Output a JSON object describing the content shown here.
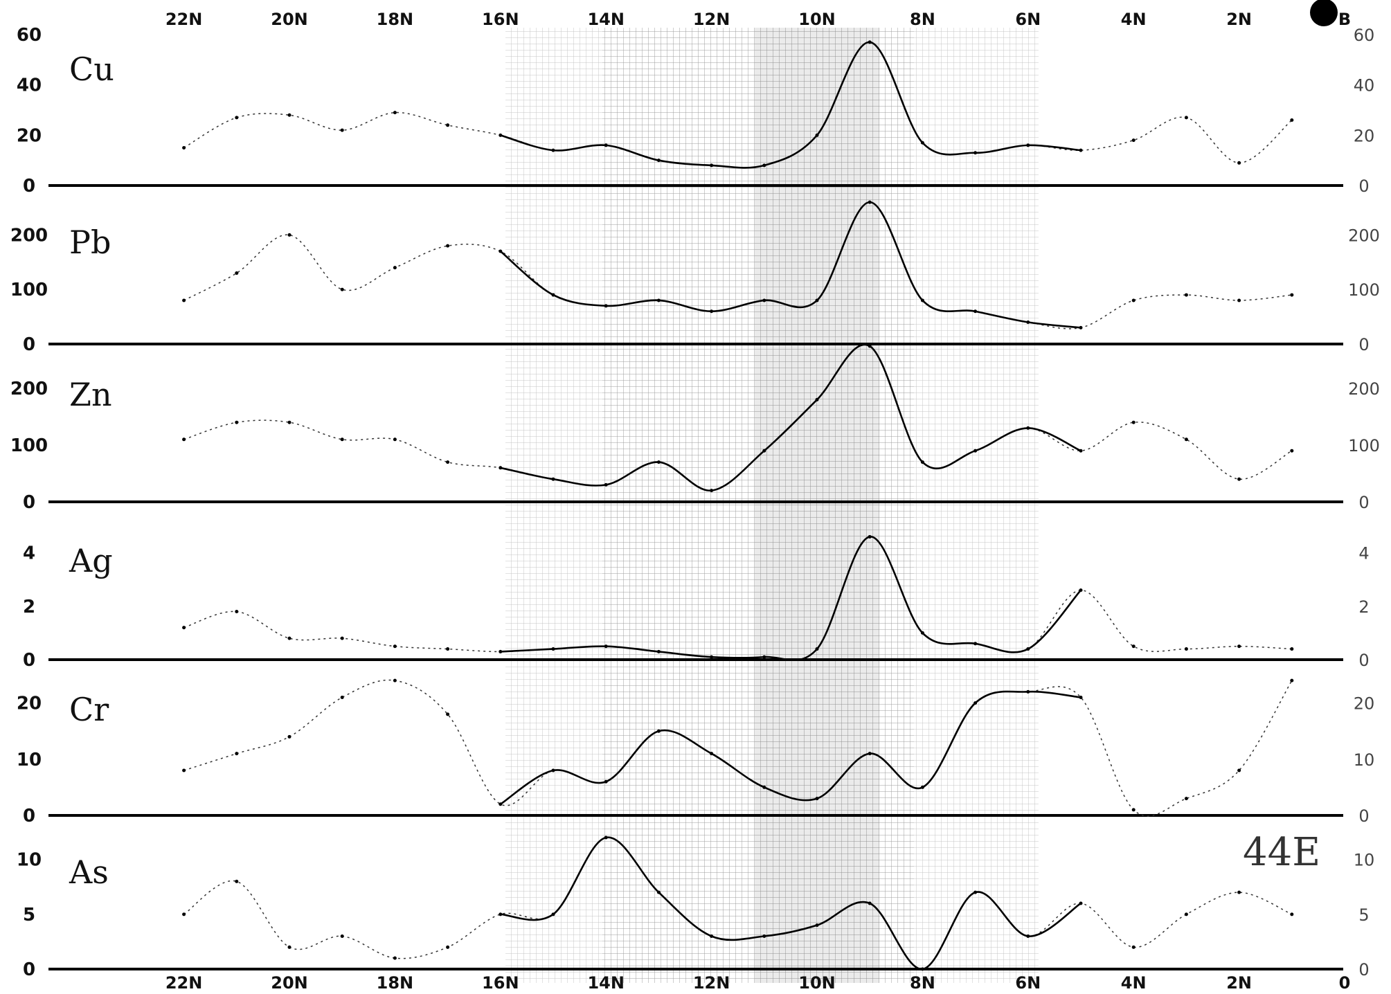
{
  "chart_data": [
    {
      "type": "line",
      "title": "Cu",
      "ylim": [
        0,
        60
      ],
      "y_ticks_left": [
        "60",
        "40",
        "20",
        "0"
      ],
      "y_ticks_right": [
        "60",
        "40",
        "20",
        "0"
      ],
      "x": [
        22,
        21,
        20,
        19,
        18,
        17,
        16,
        15,
        14,
        13,
        12,
        11,
        10,
        9,
        8,
        7,
        6,
        5,
        4,
        3,
        2,
        1
      ],
      "values": [
        15,
        27,
        28,
        22,
        29,
        24,
        20,
        14,
        16,
        10,
        8,
        8,
        20,
        57,
        17,
        13,
        16,
        14,
        18,
        27,
        9,
        26
      ]
    },
    {
      "type": "line",
      "title": "Pb",
      "ylim": [
        0,
        250
      ],
      "y_ticks_left": [
        "200",
        "100",
        "0"
      ],
      "y_ticks_right": [
        "200",
        "100",
        "0"
      ],
      "x": [
        22,
        21,
        20,
        19,
        18,
        17,
        16,
        15,
        14,
        13,
        12,
        11,
        10,
        9,
        8,
        7,
        6,
        5,
        4,
        3,
        2,
        1
      ],
      "values": [
        80,
        130,
        200,
        100,
        140,
        180,
        170,
        90,
        70,
        80,
        60,
        80,
        80,
        260,
        80,
        60,
        40,
        30,
        80,
        90,
        80,
        90
      ]
    },
    {
      "type": "line",
      "title": "Zn",
      "ylim": [
        0,
        250
      ],
      "y_ticks_left": [
        "200",
        "100",
        "0"
      ],
      "y_ticks_right": [
        "200",
        "100",
        "0"
      ],
      "x": [
        22,
        21,
        20,
        19,
        18,
        17,
        16,
        15,
        14,
        13,
        12,
        11,
        10,
        9,
        8,
        7,
        6,
        5,
        4,
        3,
        2,
        1
      ],
      "values": [
        110,
        140,
        140,
        110,
        110,
        70,
        60,
        40,
        30,
        70,
        20,
        90,
        180,
        280,
        70,
        90,
        130,
        90,
        140,
        110,
        40,
        90
      ]
    },
    {
      "type": "line",
      "title": "Ag",
      "ylim": [
        0,
        5
      ],
      "y_ticks_left": [
        "4",
        "2",
        "0"
      ],
      "y_ticks_right": [
        "4",
        "2",
        "0"
      ],
      "x": [
        22,
        21,
        20,
        19,
        18,
        17,
        16,
        15,
        14,
        13,
        12,
        11,
        10,
        9,
        8,
        7,
        6,
        5,
        4,
        3,
        2,
        1
      ],
      "values": [
        1.2,
        1.8,
        0.8,
        0.8,
        0.5,
        0.4,
        0.3,
        0.4,
        0.5,
        0.3,
        0.1,
        0.1,
        0.4,
        4.6,
        1.0,
        0.6,
        0.4,
        2.6,
        0.5,
        0.4,
        0.5,
        0.4
      ]
    },
    {
      "type": "line",
      "title": "Cr",
      "ylim": [
        0,
        25
      ],
      "y_ticks_left": [
        "20",
        "10",
        "0"
      ],
      "y_ticks_right": [
        "20",
        "10",
        "0"
      ],
      "x": [
        22,
        21,
        20,
        19,
        18,
        17,
        16,
        15,
        14,
        13,
        12,
        11,
        10,
        9,
        8,
        7,
        6,
        5,
        4,
        3,
        2,
        1
      ],
      "values": [
        8,
        11,
        14,
        21,
        24,
        18,
        2,
        8,
        6,
        15,
        11,
        5,
        3,
        11,
        5,
        20,
        22,
        21,
        1,
        3,
        8,
        24
      ]
    },
    {
      "type": "line",
      "title": "As",
      "ylim": [
        0,
        12
      ],
      "y_ticks_left": [
        "10",
        "5",
        "0"
      ],
      "y_ticks_right": [
        "10",
        "5",
        "0"
      ],
      "x": [
        22,
        21,
        20,
        19,
        18,
        17,
        16,
        15,
        14,
        13,
        12,
        11,
        10,
        9,
        8,
        7,
        6,
        5,
        4,
        3,
        2,
        1
      ],
      "values": [
        5,
        8,
        2,
        3,
        1,
        2,
        5,
        5,
        12,
        7,
        3,
        3,
        4,
        6,
        0,
        7,
        3,
        6,
        2,
        5,
        7,
        5
      ]
    }
  ],
  "x_axis_top_labels": [
    "22N",
    "20N",
    "18N",
    "16N",
    "14N",
    "12N",
    "10N",
    "8N",
    "6N",
    "4N",
    "2N",
    "B"
  ],
  "x_axis_bottom_labels": [
    "22N",
    "20N",
    "18N",
    "16N",
    "14N",
    "12N",
    "10N",
    "8N",
    "6N",
    "4N",
    "2N",
    "0"
  ],
  "annotation": "44E"
}
